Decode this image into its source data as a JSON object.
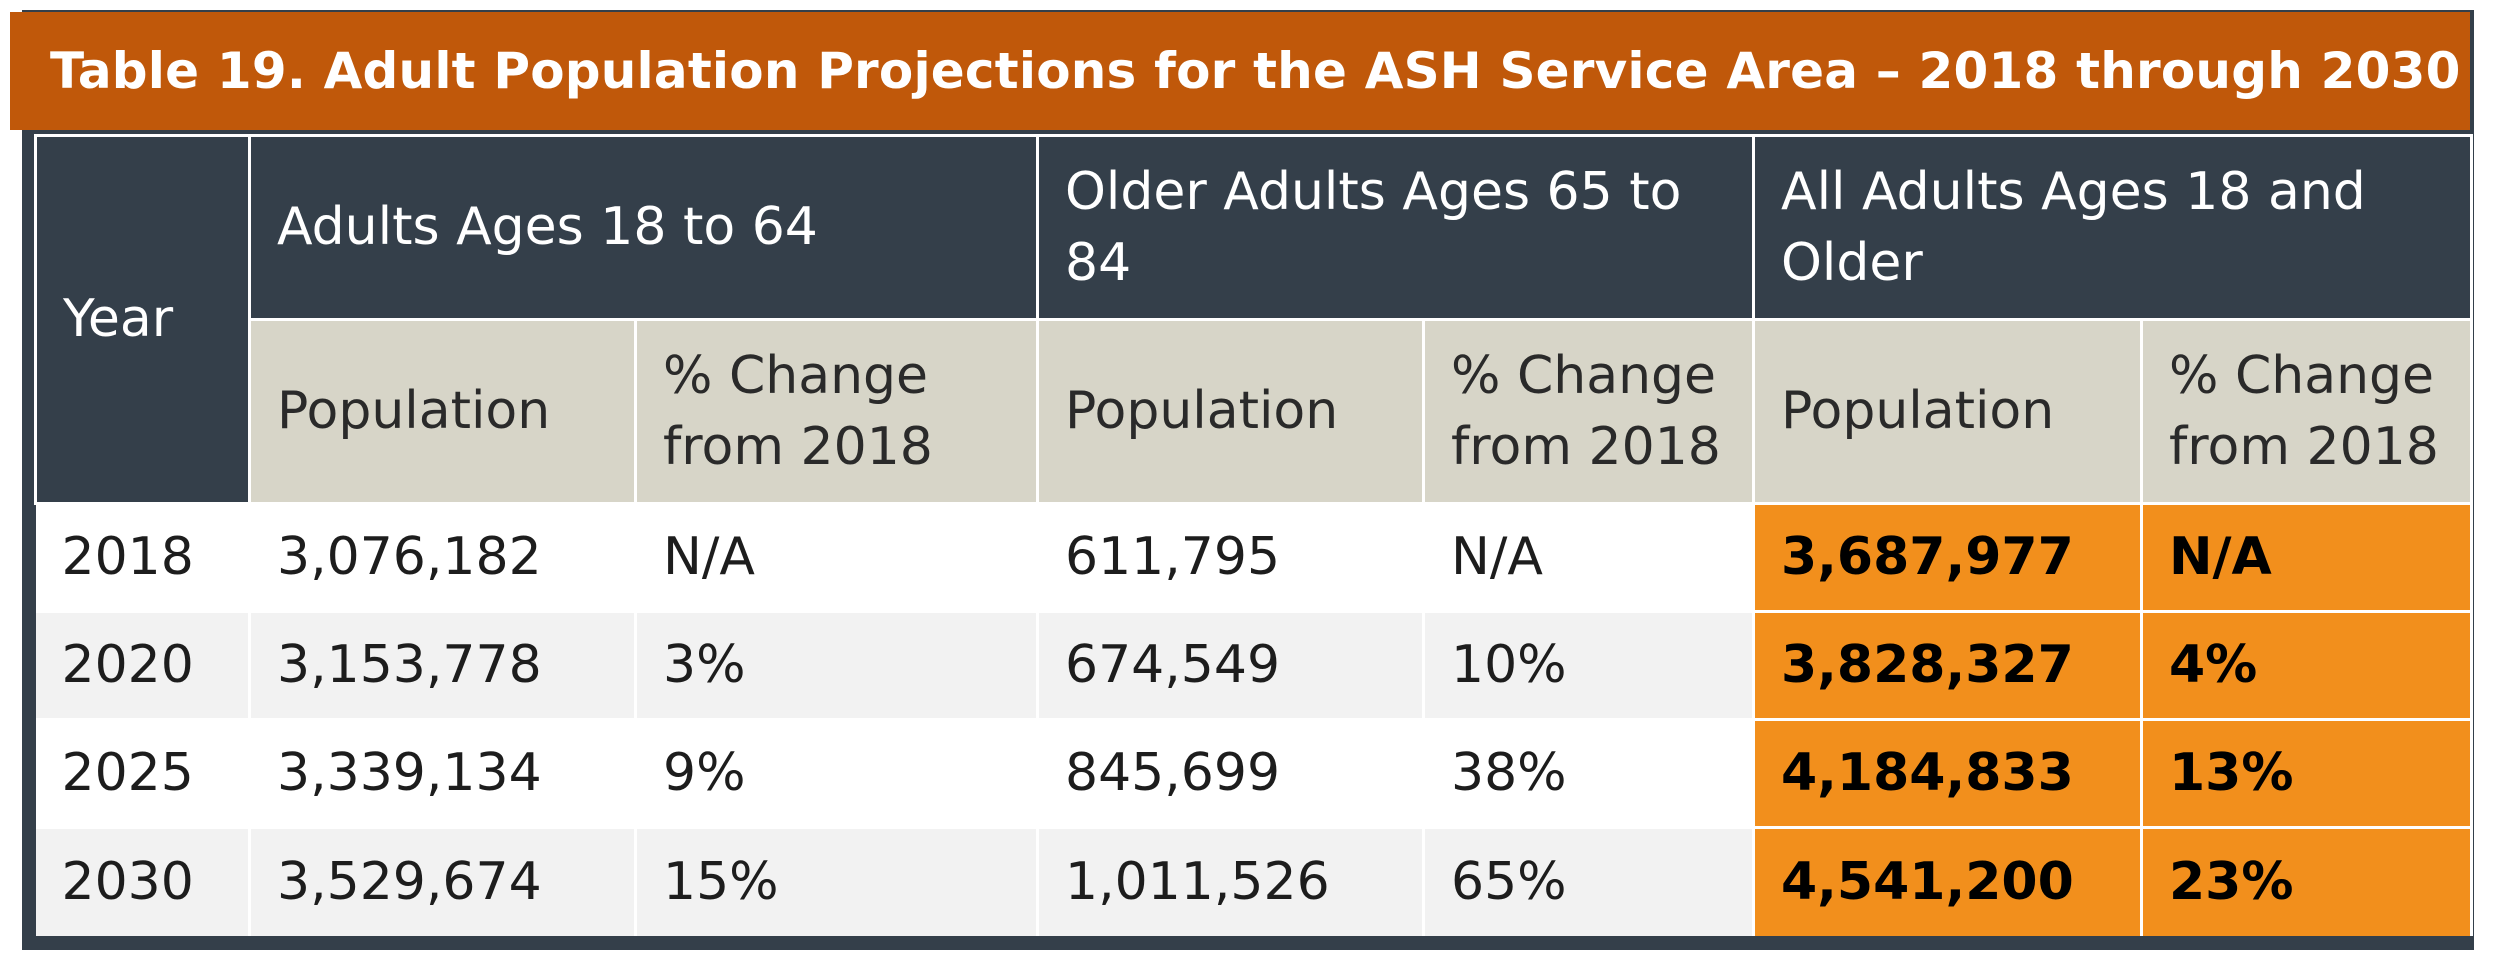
{
  "title": "Table 19. Adult Population Projections for the ASH Service Area – 2018 through 2030",
  "header": {
    "year": "Year",
    "groups": [
      "Adults Ages 18 to 64",
      "Older Adults Ages 65 to 84",
      "All Adults Ages 18 and Older"
    ],
    "sub": {
      "population": "Population",
      "change": "% Change from 2018"
    }
  },
  "rows": [
    {
      "year": "2018",
      "a_pop": "3,076,182",
      "a_chg": "N/A",
      "o_pop": "611,795",
      "o_chg": "N/A",
      "t_pop": "3,687,977",
      "t_chg": "N/A"
    },
    {
      "year": "2020",
      "a_pop": "3,153,778",
      "a_chg": "3%",
      "o_pop": "674,549",
      "o_chg": "10%",
      "t_pop": "3,828,327",
      "t_chg": "4%"
    },
    {
      "year": "2025",
      "a_pop": "3,339,134",
      "a_chg": "9%",
      "o_pop": "845,699",
      "o_chg": "38%",
      "t_pop": "4,184,833",
      "t_chg": "13%"
    },
    {
      "year": "2030",
      "a_pop": "3,529,674",
      "a_chg": "15%",
      "o_pop": "1,011,526",
      "o_chg": "65%",
      "t_pop": "4,541,200",
      "t_chg": "23%"
    }
  ],
  "colors": {
    "title_bg": "#c0580a",
    "header_bg": "#343f4a",
    "subheader_bg": "#d7d5c8",
    "highlight_bg": "#f28f1c"
  }
}
